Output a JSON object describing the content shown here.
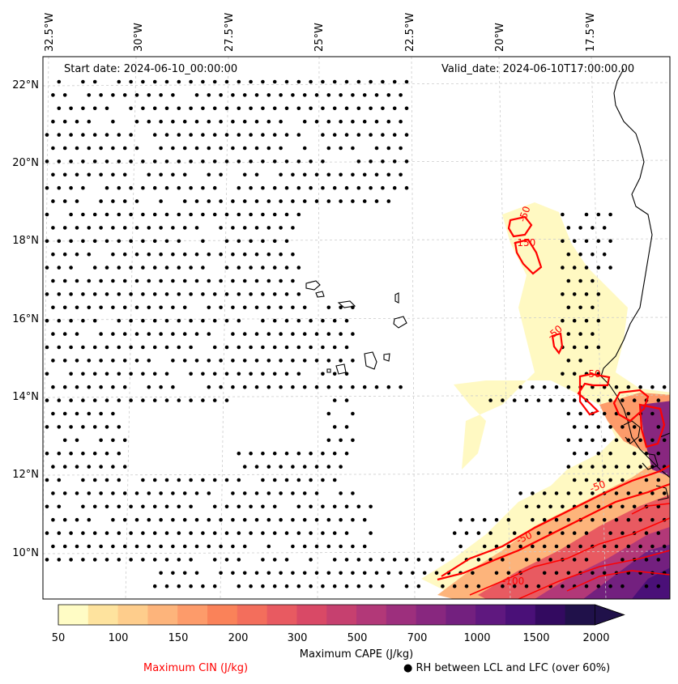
{
  "header": {
    "start_date": "Start date: 2024-06-10_00:00:00",
    "valid_date": "Valid_date: 2024-06-10T17:00:00.00"
  },
  "lon_labels": [
    "32.5°W",
    "30°W",
    "27.5°W",
    "25°W",
    "22.5°W",
    "20°W",
    "17.5°W"
  ],
  "lat_labels": [
    "22°N",
    "20°N",
    "18°N",
    "16°N",
    "14°N",
    "12°N",
    "10°N"
  ],
  "contour_labels": [
    "-50",
    "-150",
    "-50",
    "-50",
    "-50",
    "-50",
    "-100"
  ],
  "colorbar": {
    "title": "Maximum CAPE (J/kg)",
    "ticks": [
      "50",
      "100",
      "150",
      "200",
      "300",
      "500",
      "700",
      "1000",
      "1500",
      "2000"
    ],
    "colors": [
      "#fffcc5",
      "#fee39e",
      "#fecd8c",
      "#fdb47b",
      "#fd9b6a",
      "#fa8259",
      "#f36e5c",
      "#e85a61",
      "#d94966",
      "#c6406f",
      "#b23878",
      "#9d2f7d",
      "#88277f",
      "#73207f",
      "#5f187f",
      "#4a1078",
      "#330a60",
      "#20114a"
    ]
  },
  "legend": {
    "cin_label": "Maximum CIN (J/kg)",
    "rh_label": "● RH between LCL and LFC (over 60%)"
  },
  "styles": {
    "cin_color": "#ff0000"
  }
}
